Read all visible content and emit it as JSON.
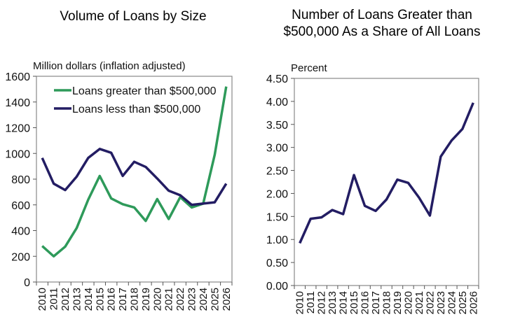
{
  "chart_data": [
    {
      "type": "line",
      "title": "Volume of Loans by Size",
      "ylabel": "Million dollars  (inflation adjusted)",
      "xlabel": "",
      "categories": [
        "2010",
        "2011",
        "2012",
        "2013",
        "2014",
        "2015",
        "2016",
        "2017",
        "2018",
        "2019",
        "2020",
        "2021",
        "2022",
        "2023",
        "2024",
        "2025",
        "2026"
      ],
      "ylim": [
        0,
        1600
      ],
      "yticks": [
        "0",
        "200",
        "400",
        "600",
        "800",
        "1000",
        "1200",
        "1400",
        "1600"
      ],
      "grid": false,
      "legend": "top-left",
      "series": [
        {
          "name": "Loans greater than $500,000",
          "color": "#2e9a5a",
          "values": [
            280,
            200,
            275,
            420,
            640,
            825,
            650,
            605,
            580,
            475,
            645,
            490,
            660,
            580,
            610,
            990,
            1520
          ]
        },
        {
          "name": "Loans less than $500,000",
          "color": "#231d63",
          "values": [
            965,
            765,
            715,
            820,
            965,
            1035,
            1005,
            825,
            935,
            895,
            805,
            710,
            675,
            600,
            610,
            620,
            765
          ]
        }
      ]
    },
    {
      "type": "line",
      "title": "Number of Loans Greater than $500,000 As a Share of All Loans",
      "ylabel": "Percent",
      "xlabel": "",
      "categories": [
        "2010",
        "2011",
        "2012",
        "2013",
        "2014",
        "2015",
        "2016",
        "2017",
        "2018",
        "2019",
        "2020",
        "2021",
        "2022",
        "2023",
        "2024",
        "2025",
        "2026"
      ],
      "ylim": [
        0,
        4.5
      ],
      "yticks": [
        "0.00",
        "0.50",
        "1.00",
        "1.50",
        "2.00",
        "2.50",
        "3.00",
        "3.50",
        "4.00",
        "4.50"
      ],
      "grid": false,
      "series": [
        {
          "color": "#231d63",
          "values": [
            0.92,
            1.45,
            1.48,
            1.64,
            1.55,
            2.4,
            1.73,
            1.62,
            1.87,
            2.3,
            2.23,
            1.91,
            1.52,
            2.8,
            3.15,
            3.4,
            3.97
          ]
        }
      ]
    }
  ],
  "titles": {
    "left": "Volume of Loans by Size",
    "right_line1": "Number of Loans Greater than",
    "right_line2": "$500,000 As a Share of All Loans"
  }
}
